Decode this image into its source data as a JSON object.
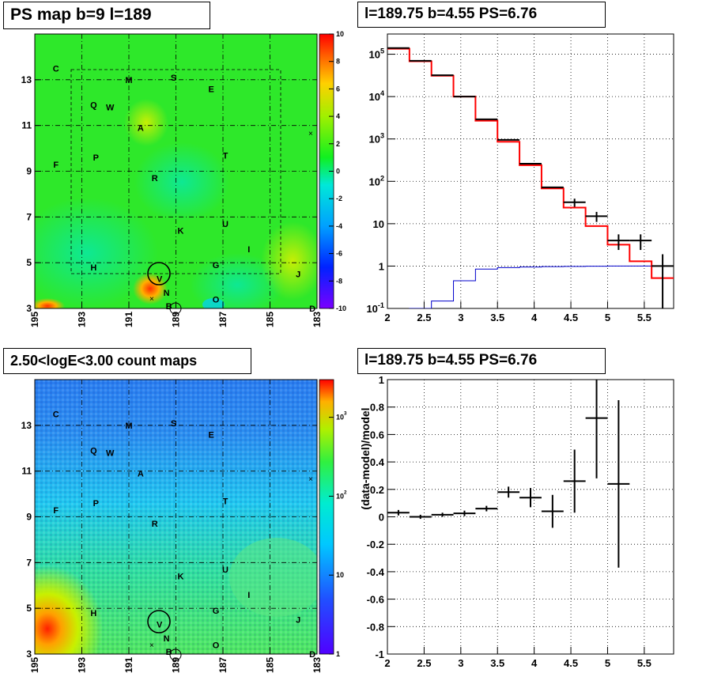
{
  "titles": {
    "ps_map": "PS map b=9 l=189",
    "spectrum": "l=189.75 b=4.55 PS=6.76",
    "count_map": "2.50<logE<3.00 count maps",
    "residual": "l=189.75 b=4.55 PS=6.76"
  },
  "colors": {
    "data": "#000000",
    "model": "#ff0000",
    "component": "#0000cc",
    "grid": "#000000"
  },
  "chart_data": [
    {
      "type": "heatmap",
      "title": "PS map b=9 l=189",
      "x_ticks": [
        "195",
        "193",
        "191",
        "189",
        "187",
        "185",
        "183"
      ],
      "y_ticks": [
        "3",
        "5",
        "7",
        "9",
        "11",
        "13"
      ],
      "xlim": [
        195,
        183
      ],
      "ylim": [
        3,
        15
      ],
      "colorbar_ticks": [
        "10",
        "8",
        "6",
        "4",
        "2",
        "0",
        "-2",
        "-4",
        "-6",
        "-8",
        "-10"
      ],
      "colorbar_range": [
        -10,
        10
      ],
      "source_labels": [
        {
          "label": "C",
          "l": 194.1,
          "b": 13.5
        },
        {
          "label": "M",
          "l": 191.0,
          "b": 13.0
        },
        {
          "label": "S",
          "l": 189.1,
          "b": 13.1
        },
        {
          "label": "E",
          "l": 187.5,
          "b": 12.6
        },
        {
          "label": "Q",
          "l": 192.5,
          "b": 11.9
        },
        {
          "label": "W",
          "l": 191.8,
          "b": 11.8
        },
        {
          "label": "A",
          "l": 190.5,
          "b": 10.9
        },
        {
          "label": "F",
          "l": 194.1,
          "b": 9.3
        },
        {
          "label": "P",
          "l": 192.4,
          "b": 9.6
        },
        {
          "label": "T",
          "l": 186.9,
          "b": 9.7
        },
        {
          "label": "R",
          "l": 189.9,
          "b": 8.7
        },
        {
          "label": "U",
          "l": 186.9,
          "b": 6.7
        },
        {
          "label": "K",
          "l": 188.8,
          "b": 6.4
        },
        {
          "label": "I",
          "l": 185.9,
          "b": 5.6
        },
        {
          "label": "H",
          "l": 192.5,
          "b": 4.8
        },
        {
          "label": "G",
          "l": 187.3,
          "b": 4.9
        },
        {
          "label": "J",
          "l": 183.8,
          "b": 4.5
        },
        {
          "label": "V",
          "l": 189.7,
          "b": 4.3
        },
        {
          "label": "N",
          "l": 189.4,
          "b": 3.7
        },
        {
          "label": "O",
          "l": 187.3,
          "b": 3.4
        },
        {
          "label": "B",
          "l": 189.3,
          "b": 3.1
        },
        {
          "label": "D",
          "l": 183.2,
          "b": 3.0
        }
      ]
    },
    {
      "type": "line",
      "title": "l=189.75 b=4.55 PS=6.76",
      "xlabel": "",
      "ylabel": "",
      "xlim": [
        2.0,
        5.9
      ],
      "ylim": [
        0.1,
        300000
      ],
      "yscale": "log",
      "x_ticks": [
        "2",
        "2.5",
        "3",
        "3.5",
        "4",
        "4.5",
        "5",
        "5.5"
      ],
      "y_ticks": [
        "10^-1",
        "1",
        "10",
        "10^2",
        "10^3",
        "10^4",
        "10^5"
      ],
      "bin_edges": [
        2.0,
        2.3,
        2.6,
        2.9,
        3.2,
        3.5,
        3.8,
        4.1,
        4.4,
        4.7,
        5.0,
        5.3,
        5.6,
        5.9
      ],
      "series": [
        {
          "values": [
            140000,
            70000,
            32000,
            10000,
            2900,
            950,
            260,
            72,
            32,
            15,
            4.0,
            4.0,
            1.0
          ],
          "errors": [
            0,
            0,
            0,
            0,
            0,
            0,
            0,
            0,
            7,
            4,
            1.6,
            1.6,
            0.9
          ]
        },
        {
          "values": [
            135000,
            68000,
            31000,
            10000,
            2700,
            860,
            240,
            68,
            24,
            8.8,
            3.2,
            1.3,
            0.52
          ]
        },
        {
          "values": [
            0.02,
            0.1,
            0.15,
            0.45,
            0.85,
            0.92,
            0.95,
            0.97,
            0.98,
            0.99,
            1.0,
            1.0,
            1.0
          ]
        }
      ]
    },
    {
      "type": "heatmap",
      "title": "2.50<logE<3.00 count maps",
      "x_ticks": [
        "195",
        "193",
        "191",
        "189",
        "187",
        "185",
        "183"
      ],
      "y_ticks": [
        "3",
        "5",
        "7",
        "9",
        "11",
        "13"
      ],
      "xlim": [
        195,
        183
      ],
      "ylim": [
        3,
        15
      ],
      "colorbar_ticks": [
        "10^3",
        "10^2",
        "10",
        "1"
      ],
      "colorbar_range": [
        1,
        3000
      ],
      "zscale": "log"
    },
    {
      "type": "scatter",
      "title": "l=189.75 b=4.55 PS=6.76",
      "xlabel": "",
      "ylabel": "(data-model)/model",
      "xlim": [
        2.0,
        5.9
      ],
      "ylim": [
        -1.0,
        1.0
      ],
      "x_ticks": [
        "2",
        "2.5",
        "3",
        "3.5",
        "4",
        "4.5",
        "5",
        "5.5"
      ],
      "y_ticks": [
        "-1",
        "-0.8",
        "-0.6",
        "-0.4",
        "-0.2",
        "0",
        "0.2",
        "0.4",
        "0.6",
        "0.8",
        "1"
      ],
      "points": [
        {
          "x": 2.15,
          "y": 0.03,
          "xerr": 0.15,
          "yerr": 0.02
        },
        {
          "x": 2.45,
          "y": 0.0,
          "xerr": 0.15,
          "yerr": 0.015
        },
        {
          "x": 2.75,
          "y": 0.015,
          "xerr": 0.15,
          "yerr": 0.015
        },
        {
          "x": 3.05,
          "y": 0.025,
          "xerr": 0.15,
          "yerr": 0.02
        },
        {
          "x": 3.35,
          "y": 0.06,
          "xerr": 0.15,
          "yerr": 0.02
        },
        {
          "x": 3.65,
          "y": 0.18,
          "xerr": 0.15,
          "yerr": 0.04
        },
        {
          "x": 3.95,
          "y": 0.14,
          "xerr": 0.15,
          "yerr": 0.07
        },
        {
          "x": 4.25,
          "y": 0.04,
          "xerr": 0.15,
          "yerr": 0.12
        },
        {
          "x": 4.55,
          "y": 0.26,
          "xerr": 0.15,
          "yerr": 0.23
        },
        {
          "x": 4.85,
          "y": 0.72,
          "xerr": 0.15,
          "yerr": 0.44
        },
        {
          "x": 5.15,
          "y": 0.24,
          "xerr": 0.15,
          "yerr": 0.61
        }
      ]
    }
  ]
}
